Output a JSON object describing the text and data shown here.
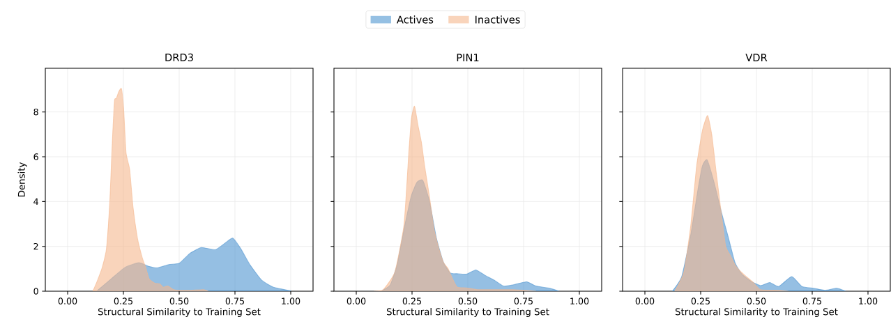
{
  "chart_data": [
    {
      "type": "area",
      "title": "DRD3",
      "xlabel": "Structural Similarity to Training Set",
      "ylabel": "Density",
      "grid": true,
      "legend": "top",
      "xlim": [
        -0.1,
        1.1
      ],
      "ylim": [
        0,
        9.95
      ],
      "xticks": [
        {
          "value": 0,
          "label": "0.00"
        },
        {
          "value": 0.25,
          "label": "0.25"
        },
        {
          "value": 0.5,
          "label": "0.50"
        },
        {
          "value": 0.75,
          "label": "0.75"
        },
        {
          "value": 1,
          "label": "1.00"
        }
      ],
      "yticks": [
        0,
        2,
        4,
        6,
        8
      ],
      "series": [
        {
          "name": "Actives",
          "color": "#4e95d0",
          "x": [
            0.13,
            0.194,
            0.257,
            0.319,
            0.36,
            0.402,
            0.454,
            0.501,
            0.548,
            0.6,
            0.662,
            0.714,
            0.74,
            0.776,
            0.818,
            0.87,
            0.922,
            1.0
          ],
          "values": [
            0,
            0.54,
            1.06,
            1.27,
            1.12,
            1.04,
            1.19,
            1.25,
            1.69,
            1.95,
            1.85,
            2.21,
            2.37,
            1.9,
            1.17,
            0.49,
            0.18,
            0.02
          ]
        },
        {
          "name": "Inactives",
          "color": "#f5b78e",
          "x": [
            0.113,
            0.132,
            0.155,
            0.174,
            0.189,
            0.2,
            0.21,
            0.218,
            0.229,
            0.241,
            0.251,
            0.262,
            0.278,
            0.293,
            0.314,
            0.335,
            0.35,
            0.366,
            0.392,
            0.413,
            0.428,
            0.449,
            0.475,
            0.506,
            0.548,
            0.61,
            0.63
          ],
          "values": [
            0,
            0.44,
            1.06,
            1.9,
            4.0,
            6.6,
            8.5,
            8.6,
            8.9,
            9.04,
            8.15,
            6.17,
            5.44,
            3.77,
            2.31,
            1.48,
            1.06,
            0.54,
            0.35,
            0.33,
            0.18,
            0.23,
            0.07,
            0.04,
            0.04,
            0.07,
            0
          ]
        }
      ]
    },
    {
      "type": "area",
      "title": "PIN1",
      "xlabel": "Structural Similarity to Training Set",
      "grid": true,
      "tick_labels": "x",
      "xlim": [
        -0.1,
        1.1
      ],
      "ylim": [
        0,
        9.95
      ],
      "xticks": [
        {
          "value": 0,
          "label": "0.00"
        },
        {
          "value": 0.25,
          "label": "0.25"
        },
        {
          "value": 0.5,
          "label": "0.50"
        },
        {
          "value": 0.75,
          "label": "0.75"
        },
        {
          "value": 1,
          "label": "1.00"
        }
      ],
      "yticks": [
        0,
        2,
        4,
        6,
        8
      ],
      "series": [
        {
          "color": "#4e95d0",
          "x": [
            0.111,
            0.152,
            0.183,
            0.214,
            0.246,
            0.272,
            0.298,
            0.328,
            0.36,
            0.391,
            0.422,
            0.453,
            0.494,
            0.536,
            0.577,
            0.619,
            0.66,
            0.702,
            0.764,
            0.805,
            0.867,
            0.909
          ],
          "values": [
            0,
            0.28,
            1.18,
            2.76,
            4.23,
            4.86,
            4.95,
            4.02,
            2.34,
            1.28,
            0.81,
            0.78,
            0.76,
            0.95,
            0.71,
            0.49,
            0.23,
            0.28,
            0.42,
            0.23,
            0.13,
            0
          ]
        },
        {
          "color": "#f5b78e",
          "x": [
            0.08,
            0.121,
            0.173,
            0.214,
            0.235,
            0.247,
            0.261,
            0.277,
            0.292,
            0.308,
            0.328,
            0.349,
            0.37,
            0.391,
            0.411,
            0.432,
            0.453,
            0.494,
            0.546,
            0.7,
            0.805
          ],
          "values": [
            0,
            0.07,
            0.86,
            2.97,
            6.1,
            7.7,
            8.26,
            7.39,
            6.65,
            5.49,
            4.23,
            2.76,
            1.92,
            1.28,
            1.02,
            0.55,
            0.18,
            0.15,
            0.07,
            0.07,
            0
          ]
        }
      ]
    },
    {
      "type": "area",
      "title": "VDR",
      "xlabel": "Structural Similarity to Training Set",
      "grid": true,
      "tick_labels": "x",
      "xlim": [
        -0.1,
        1.1
      ],
      "ylim": [
        0,
        9.95
      ],
      "xticks": [
        {
          "value": 0,
          "label": "0.00"
        },
        {
          "value": 0.25,
          "label": "0.25"
        },
        {
          "value": 0.5,
          "label": "0.50"
        },
        {
          "value": 0.75,
          "label": "0.75"
        },
        {
          "value": 1,
          "label": "1.00"
        }
      ],
      "yticks": [
        0,
        2,
        4,
        6,
        8
      ],
      "series": [
        {
          "color": "#4e95d0",
          "x": [
            0.123,
            0.165,
            0.206,
            0.238,
            0.258,
            0.279,
            0.31,
            0.341,
            0.373,
            0.404,
            0.435,
            0.476,
            0.518,
            0.56,
            0.6,
            0.658,
            0.704,
            0.756,
            0.808,
            0.86,
            0.901
          ],
          "values": [
            0,
            0.65,
            2.55,
            4.55,
            5.6,
            5.86,
            4.86,
            3.6,
            2.44,
            1.28,
            0.76,
            0.44,
            0.25,
            0.39,
            0.21,
            0.65,
            0.21,
            0.13,
            0.04,
            0.13,
            0
          ]
        },
        {
          "color": "#f5b78e",
          "x": [
            0.134,
            0.175,
            0.206,
            0.232,
            0.258,
            0.281,
            0.3,
            0.32,
            0.341,
            0.362,
            0.383,
            0.404,
            0.425,
            0.455,
            0.486,
            0.518,
            0.6,
            0.642
          ],
          "values": [
            0,
            0.86,
            2.97,
            5.6,
            7.18,
            7.84,
            6.97,
            5.28,
            3.6,
            2.02,
            1.6,
            1.18,
            0.92,
            0.65,
            0.39,
            0.07,
            0.04,
            0
          ]
        }
      ]
    }
  ]
}
